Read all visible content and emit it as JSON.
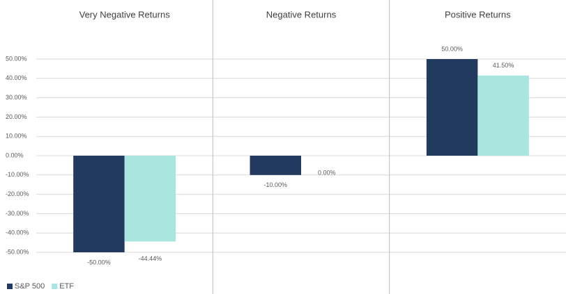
{
  "chart_data": {
    "type": "bar",
    "categories": [
      "Very Negative Returns",
      "Negative Returns",
      "Positive Returns"
    ],
    "series": [
      {
        "name": "S&P 500",
        "color": "#213a5e",
        "values": [
          -50,
          -10,
          50
        ],
        "value_labels": [
          "-50.00%",
          "-10.00%",
          "50.00%"
        ]
      },
      {
        "name": "ETF",
        "color": "#a8e6df",
        "values": [
          -44.44,
          0,
          41.5
        ],
        "value_labels": [
          "-44.44%",
          "0.00%",
          "41.50%"
        ]
      }
    ],
    "ylim": [
      -50,
      50
    ],
    "yticks": [
      {
        "value": 50,
        "label": "50.00%"
      },
      {
        "value": 40,
        "label": "40.00%"
      },
      {
        "value": 30,
        "label": "30.00%"
      },
      {
        "value": 20,
        "label": "20.00%"
      },
      {
        "value": 10,
        "label": "10.00%"
      },
      {
        "value": 0,
        "label": "0.00%"
      },
      {
        "value": -10,
        "label": "-10.00%"
      },
      {
        "value": -20,
        "label": "-20.00%"
      },
      {
        "value": -30,
        "label": "-30.00%"
      },
      {
        "value": -40,
        "label": "-40.00%"
      },
      {
        "value": -50,
        "label": "-50.00%"
      }
    ],
    "grid": true,
    "legend": "bottom-left"
  }
}
